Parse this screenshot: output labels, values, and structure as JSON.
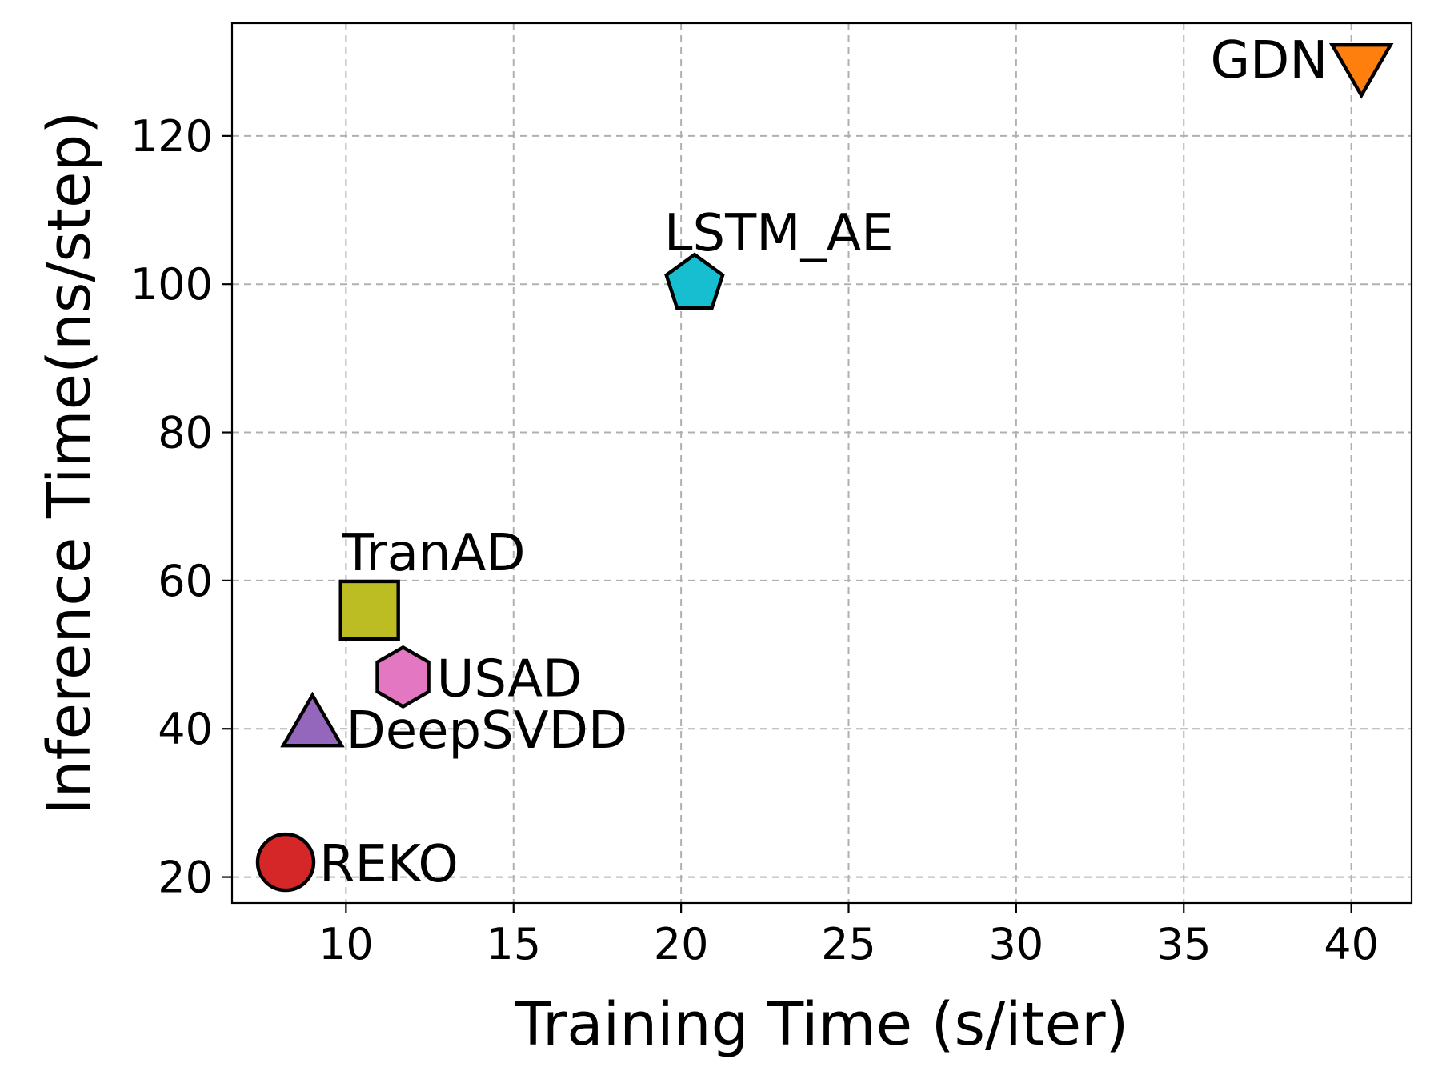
{
  "chart_data": {
    "type": "scatter",
    "title": "",
    "xlabel": "Training Time (s/iter)",
    "ylabel": "Inference Time(ns/step)",
    "xlim": [
      6.6,
      41.8
    ],
    "ylim": [
      16.5,
      135.2
    ],
    "xticks": [
      10,
      15,
      20,
      25,
      30,
      35,
      40
    ],
    "yticks": [
      20,
      40,
      60,
      80,
      100,
      120
    ],
    "grid": true,
    "points": [
      {
        "name": "REKO",
        "x": 8.2,
        "y": 22,
        "marker": "circle",
        "color": "#d62728",
        "label_pos": "right"
      },
      {
        "name": "DeepSVDD",
        "x": 9.0,
        "y": 40,
        "marker": "triangle-up",
        "color": "#9467bd",
        "label_pos": "right"
      },
      {
        "name": "USAD",
        "x": 11.7,
        "y": 47,
        "marker": "hexagon",
        "color": "#e377c2",
        "label_pos": "right"
      },
      {
        "name": "TranAD",
        "x": 10.7,
        "y": 56,
        "marker": "square",
        "color": "#bcbd22",
        "label_pos": "top"
      },
      {
        "name": "LSTM_AE",
        "x": 20.4,
        "y": 100,
        "marker": "pentagon",
        "color": "#17becf",
        "label_pos": "top"
      },
      {
        "name": "GDN",
        "x": 40.3,
        "y": 130,
        "marker": "triangle-down",
        "color": "#ff7f0e",
        "label_pos": "left"
      }
    ]
  }
}
